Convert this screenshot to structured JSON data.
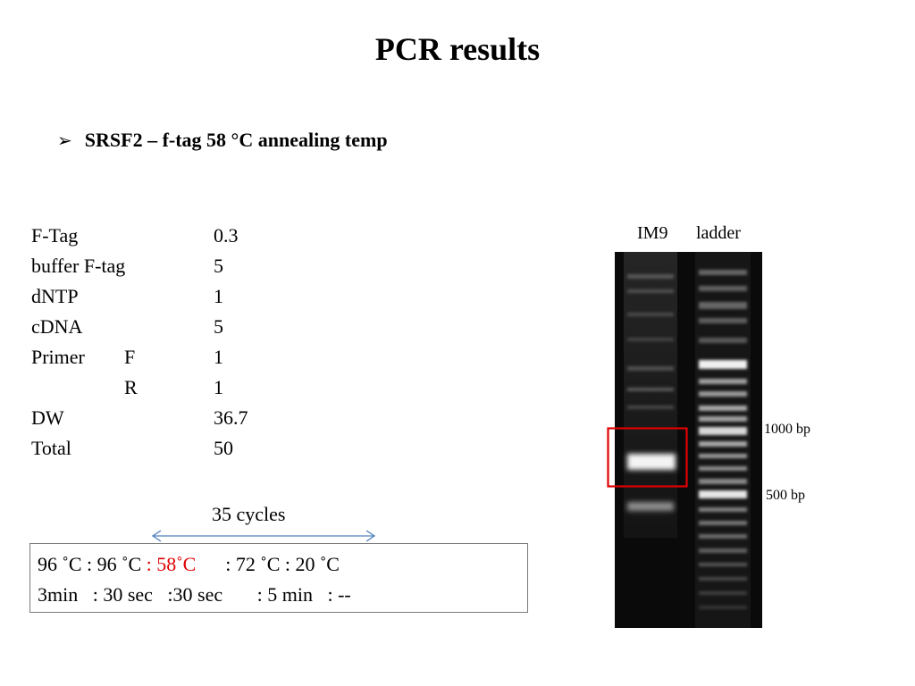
{
  "slide": {
    "title": "PCR results",
    "bullet": "SRSF2 – f-tag 58 °C annealing temp",
    "bullet_icon": "arrowhead-bullet-icon"
  },
  "recipe": [
    {
      "name": "F-Tag",
      "sub": "",
      "value": "0.3"
    },
    {
      "name": "buffer F-tag",
      "sub": "",
      "value": "5"
    },
    {
      "name": "dNTP",
      "sub": "",
      "value": "1"
    },
    {
      "name": "cDNA",
      "sub": "",
      "value": "5"
    },
    {
      "name": "Primer",
      "sub": "F",
      "value": "1"
    },
    {
      "name": "",
      "sub": "R",
      "value": "1"
    },
    {
      "name": "DW",
      "sub": "",
      "value": "36.7"
    },
    {
      "name": "Total",
      "sub": "",
      "value": "50"
    }
  ],
  "cycles": {
    "label": "35 cycles",
    "arrow_color": "#4f81bd"
  },
  "conditions": {
    "temps_pre": "96 ˚C : 96 ˚C ",
    "temps_highlight": ": 58˚C",
    "temps_post": "      : 72 ˚C : 20 ˚C",
    "times": "3min   : 30 sec   :30 sec       : 5 min   : --",
    "highlight_color": "#e00000"
  },
  "gel": {
    "lanes": [
      "IM9",
      "ladder"
    ],
    "markers": [
      "1000 bp",
      "500 bp"
    ],
    "highlight_box_color": "#e00000"
  }
}
